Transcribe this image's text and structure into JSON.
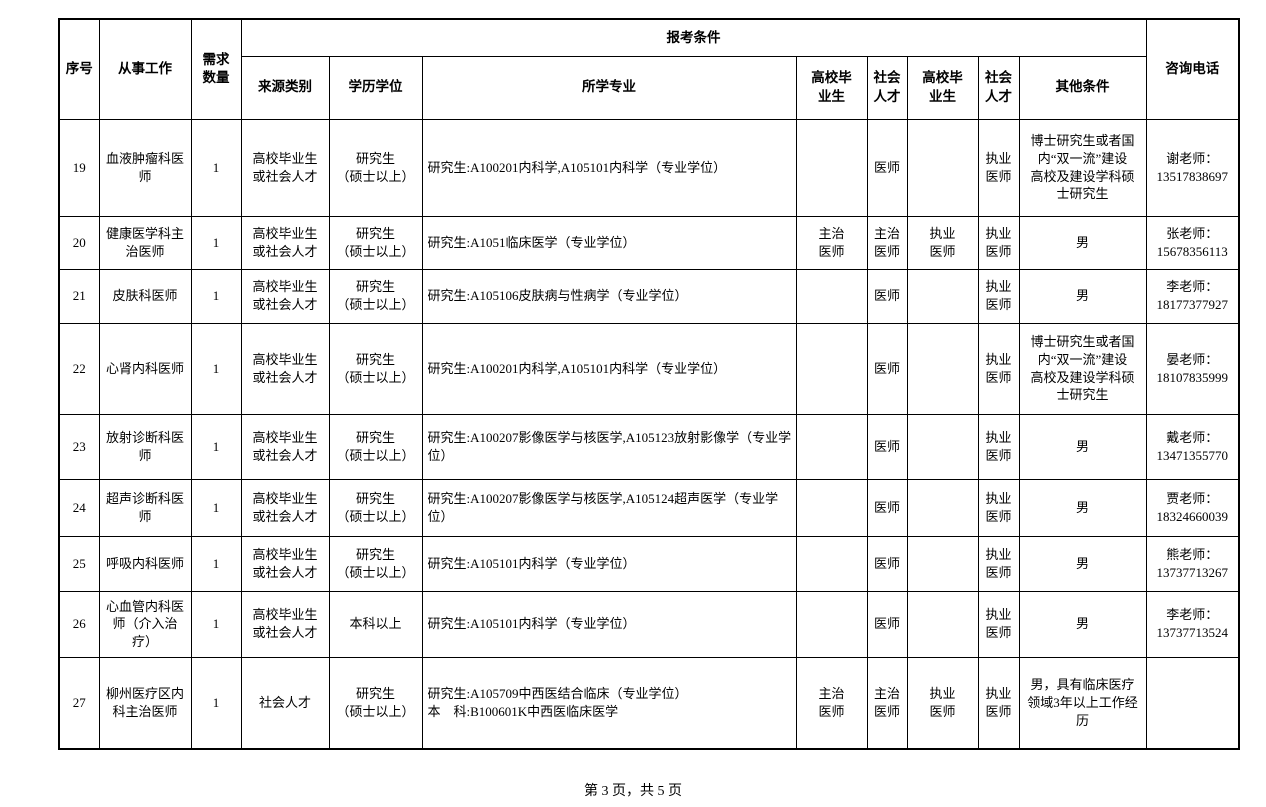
{
  "colors": {
    "border": "#000000",
    "background": "#ffffff",
    "text": "#000000"
  },
  "page": {
    "footer": "第 3 页，共 5 页"
  },
  "table": {
    "header": {
      "xuhao": "序号",
      "congshi": "从事工作",
      "xuqiu": "需求\n数量",
      "baokao": "报考条件",
      "laiyuan": "来源类别",
      "xueli": "学历学位",
      "suoxue": "所学专业",
      "gaoxiao1": "高校毕\n业生",
      "shehui1": "社会\n人才",
      "gaoxiao2": "高校毕\n业生",
      "shehui2": "社会\n人才",
      "qita": "其他条件",
      "zixun": "咨询电话"
    },
    "rows": [
      {
        "no": "19",
        "job": "血液肿瘤科医\n师",
        "count": "1",
        "source": "高校毕业生\n或社会人才",
        "degree": "研究生\n（硕士以上）",
        "major": "研究生:A100201内科学,A105101内科学（专业学位）",
        "grad1": "",
        "social1": "医师",
        "grad2": "",
        "social2": "执业\n医师",
        "other": "博士研究生或者国\n内“双一流”建设\n高校及建设学科硕\n士研究生",
        "phone": "谢老师：\n13517838697"
      },
      {
        "no": "20",
        "job": "健康医学科主\n治医师",
        "count": "1",
        "source": "高校毕业生\n或社会人才",
        "degree": "研究生\n（硕士以上）",
        "major": "研究生:A1051临床医学（专业学位）",
        "grad1": "主治\n医师",
        "social1": "主治\n医师",
        "grad2": "执业\n医师",
        "social2": "执业\n医师",
        "other": "男",
        "phone": "张老师：\n15678356113"
      },
      {
        "no": "21",
        "job": "皮肤科医师",
        "count": "1",
        "source": "高校毕业生\n或社会人才",
        "degree": "研究生\n（硕士以上）",
        "major": "研究生:A105106皮肤病与性病学（专业学位）",
        "grad1": "",
        "social1": "医师",
        "grad2": "",
        "social2": "执业\n医师",
        "other": "男",
        "phone": "李老师：\n18177377927"
      },
      {
        "no": "22",
        "job": "心肾内科医师",
        "count": "1",
        "source": "高校毕业生\n或社会人才",
        "degree": "研究生\n（硕士以上）",
        "major": "研究生:A100201内科学,A105101内科学（专业学位）",
        "grad1": "",
        "social1": "医师",
        "grad2": "",
        "social2": "执业\n医师",
        "other": "博士研究生或者国\n内“双一流”建设\n高校及建设学科硕\n士研究生",
        "phone": "晏老师：\n18107835999"
      },
      {
        "no": "23",
        "job": "放射诊断科医\n师",
        "count": "1",
        "source": "高校毕业生\n或社会人才",
        "degree": "研究生\n（硕士以上）",
        "major": "研究生:A100207影像医学与核医学,A105123放射影像学（专业学位）",
        "grad1": "",
        "social1": "医师",
        "grad2": "",
        "social2": "执业\n医师",
        "other": "男",
        "phone": "戴老师：\n13471355770"
      },
      {
        "no": "24",
        "job": "超声诊断科医\n师",
        "count": "1",
        "source": "高校毕业生\n或社会人才",
        "degree": "研究生\n（硕士以上）",
        "major": "研究生:A100207影像医学与核医学,A105124超声医学（专业学位）",
        "grad1": "",
        "social1": "医师",
        "grad2": "",
        "social2": "执业\n医师",
        "other": "男",
        "phone": "贾老师：\n18324660039"
      },
      {
        "no": "25",
        "job": "呼吸内科医师",
        "count": "1",
        "source": "高校毕业生\n或社会人才",
        "degree": "研究生\n（硕士以上）",
        "major": "研究生:A105101内科学（专业学位）",
        "grad1": "",
        "social1": "医师",
        "grad2": "",
        "social2": "执业\n医师",
        "other": "男",
        "phone": "熊老师：\n13737713267"
      },
      {
        "no": "26",
        "job": "心血管内科医\n师（介入治\n疗）",
        "count": "1",
        "source": "高校毕业生\n或社会人才",
        "degree": "本科以上",
        "major": "研究生:A105101内科学（专业学位）",
        "grad1": "",
        "social1": "医师",
        "grad2": "",
        "social2": "执业\n医师",
        "other": "男",
        "phone": "李老师：\n13737713524"
      },
      {
        "no": "27",
        "job": "柳州医疗区内\n科主治医师",
        "count": "1",
        "source": "社会人才",
        "degree": "研究生\n（硕士以上）",
        "major": "研究生:A105709中西医结合临床（专业学位）\n本　科:B100601K中西医临床医学",
        "grad1": "主治\n医师",
        "social1": "主治\n医师",
        "grad2": "执业\n医师",
        "social2": "执业\n医师",
        "other": "男，具有临床医疗\n领域3年以上工作经\n历",
        "phone": ""
      }
    ]
  }
}
